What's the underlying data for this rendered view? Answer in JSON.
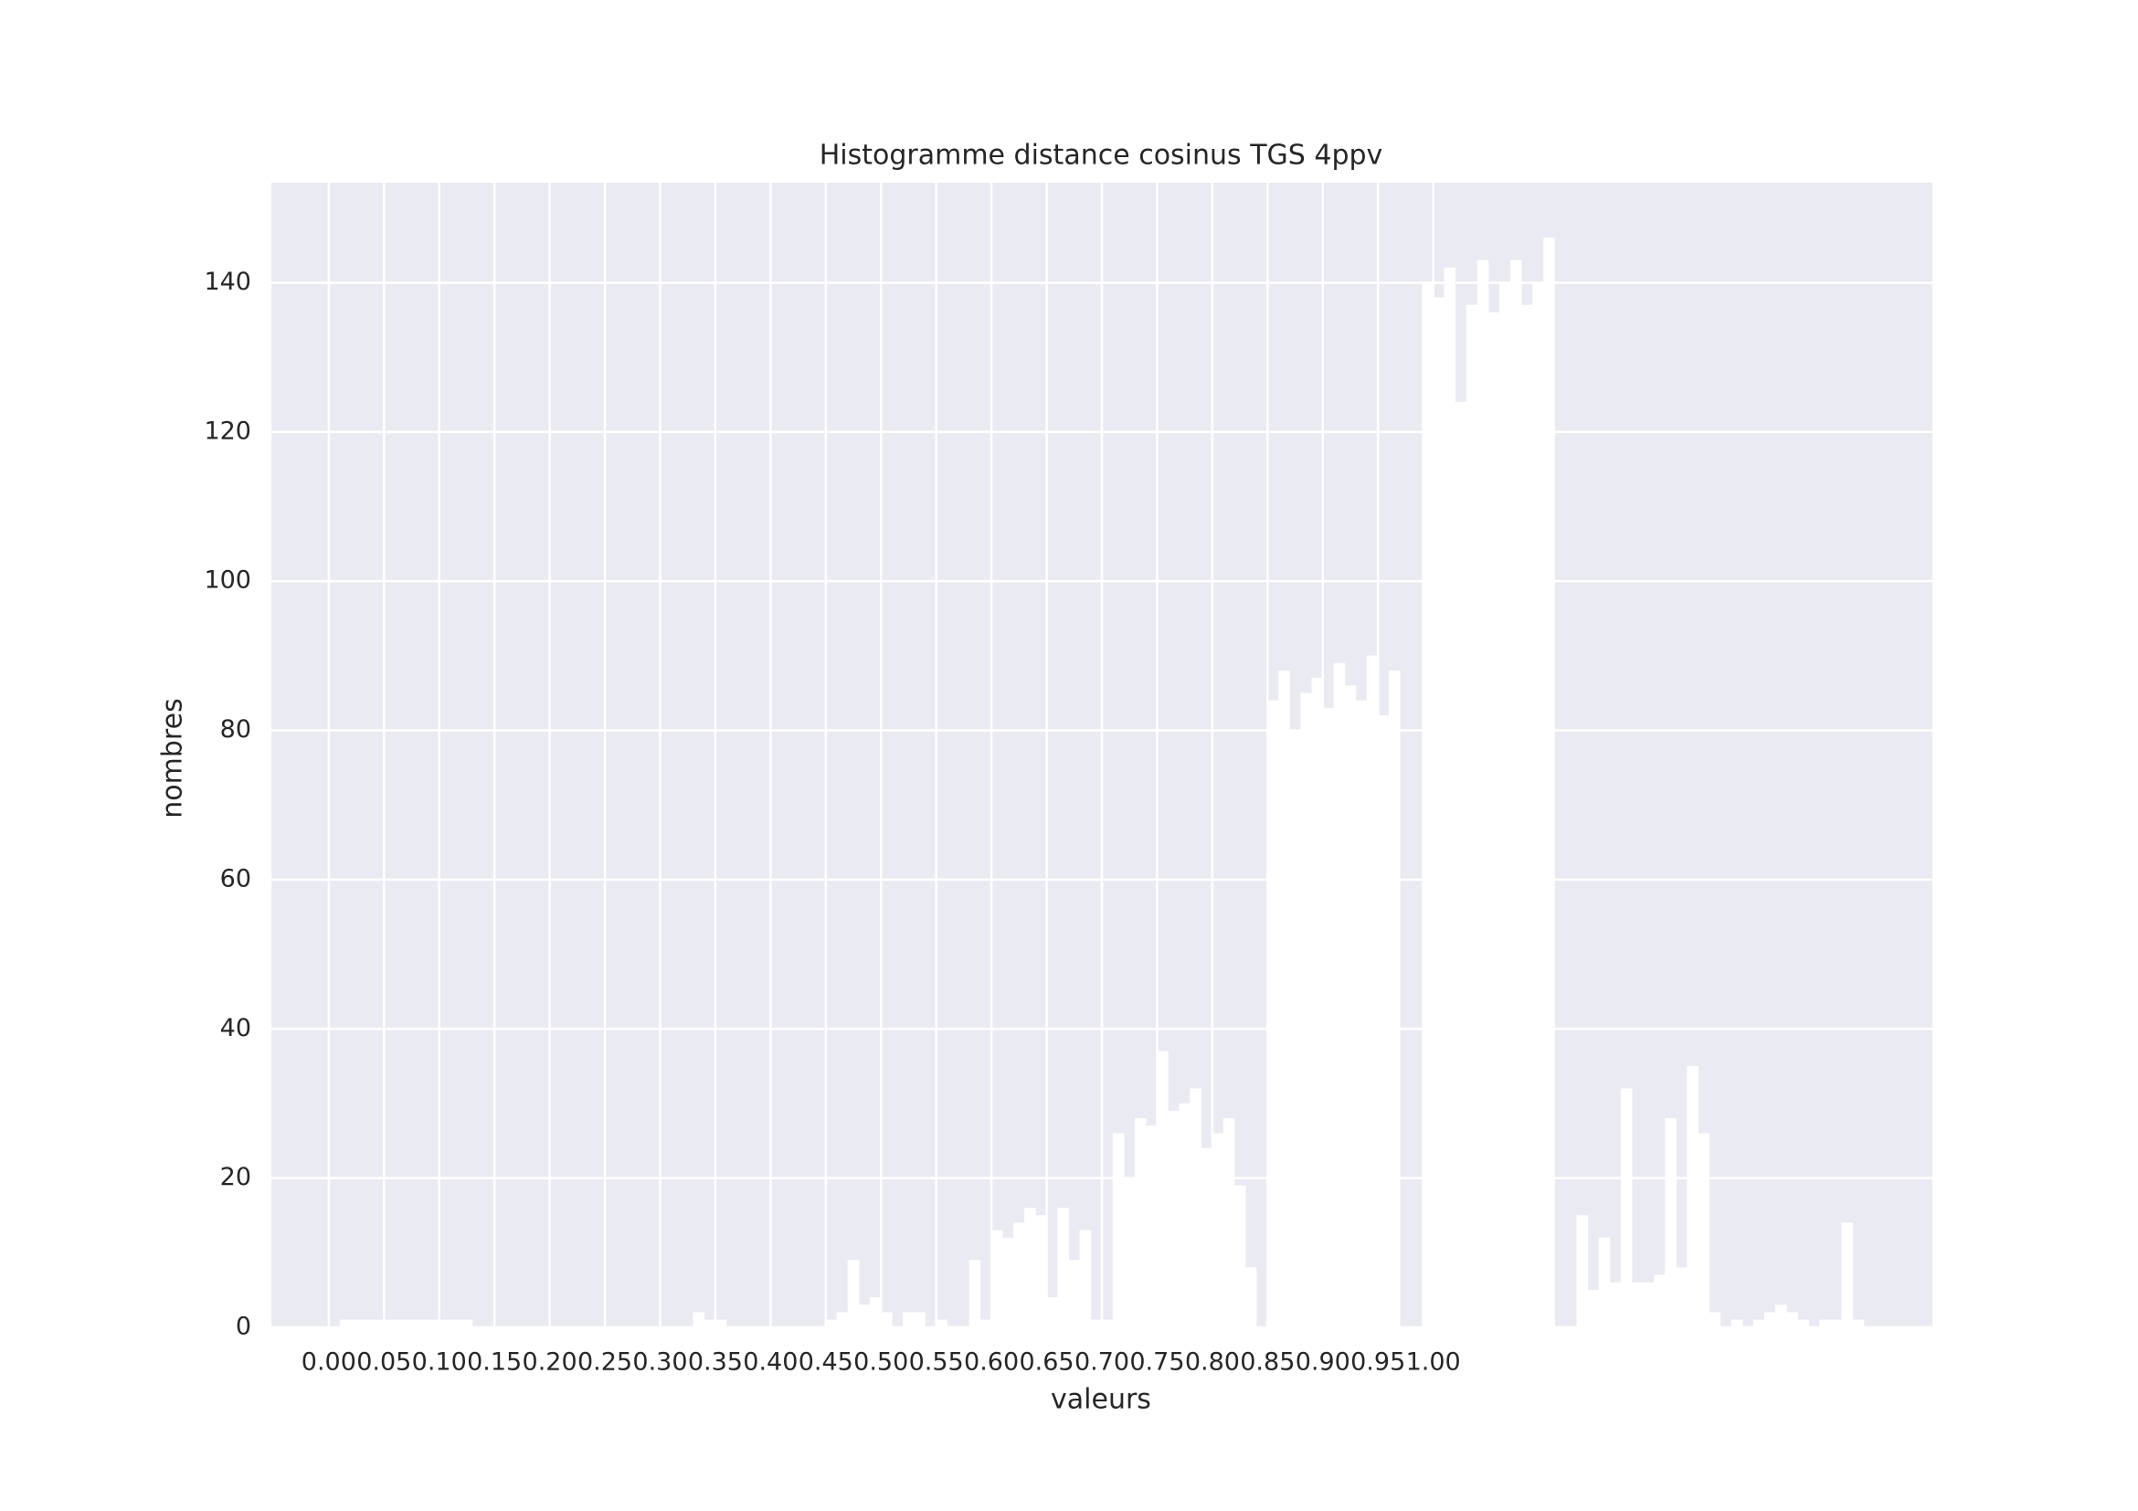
{
  "chart_data": {
    "type": "histogram",
    "title": "Histogramme distance cosinus TGS 4ppv",
    "x_label": "valeurs",
    "y_label": "nombres",
    "bins": [
      0,
      0.01,
      0.02,
      0.03,
      0.04,
      0.05,
      0.06,
      0.07,
      0.08,
      0.09,
      0.1,
      0.11,
      0.12,
      0.13,
      0.14,
      0.15,
      0.16,
      0.17,
      0.18,
      0.19,
      0.2,
      0.21,
      0.22,
      0.23,
      0.24,
      0.25,
      0.26,
      0.27,
      0.28,
      0.29,
      0.3,
      0.31,
      0.32,
      0.33,
      0.34,
      0.35,
      0.36,
      0.37,
      0.38,
      0.39,
      0.4,
      0.41,
      0.42,
      0.43,
      0.44,
      0.45,
      0.46,
      0.47,
      0.48,
      0.49,
      0.5,
      0.51,
      0.52,
      0.53,
      0.54,
      0.55,
      0.56,
      0.57,
      0.58,
      0.59,
      0.6,
      0.61,
      0.62,
      0.63,
      0.64,
      0.65,
      0.66,
      0.67,
      0.68,
      0.69,
      0.7,
      0.71,
      0.72,
      0.73,
      0.74,
      0.75,
      0.76,
      0.77,
      0.78,
      0.79,
      0.8,
      0.81,
      0.82,
      0.83,
      0.84,
      0.85,
      0.86,
      0.87,
      0.88,
      0.89,
      0.9,
      0.91,
      0.92,
      0.93,
      0.94,
      0.95,
      0.96,
      0.97,
      0.98,
      0.99,
      1,
      1.01,
      1.02,
      1.03,
      1.04,
      1.05,
      1.06,
      1.07,
      1.08,
      1.09,
      1.1,
      1.11,
      1.12,
      1.13,
      1.14,
      1.15,
      1.16,
      1.17,
      1.18,
      1.19,
      1.2,
      1.21,
      1.22,
      1.23,
      1.24,
      1.25,
      1.26,
      1.27,
      1.28,
      1.29,
      1.3,
      1.31,
      1.32,
      1.33,
      1.34,
      1.35,
      1.36,
      1.37,
      1.38,
      1.39,
      1.4
    ],
    "values": [
      0,
      1,
      1,
      1,
      1,
      1,
      1,
      1,
      1,
      1,
      1,
      1,
      1,
      0,
      0,
      0,
      0,
      0,
      0,
      0,
      0,
      0,
      0,
      0,
      0,
      0,
      0,
      0,
      0,
      0,
      0,
      0,
      0,
      2,
      1,
      1,
      0,
      0,
      0,
      0,
      0,
      0,
      0,
      0,
      0,
      1,
      2,
      9,
      3,
      4,
      2,
      0,
      2,
      2,
      0,
      1,
      0,
      0,
      9,
      1,
      13,
      12,
      14,
      16,
      15,
      4,
      16,
      9,
      13,
      1,
      1,
      26,
      20,
      28,
      27,
      37,
      29,
      30,
      32,
      24,
      26,
      28,
      19,
      8,
      0,
      84,
      88,
      80,
      85,
      87,
      83,
      89,
      86,
      84,
      90,
      82,
      88,
      0,
      0,
      140,
      138,
      142,
      124,
      137,
      143,
      136,
      140,
      143,
      137,
      140,
      146,
      0,
      0,
      15,
      5,
      12,
      6,
      32,
      6,
      6,
      7,
      28,
      8,
      35,
      26,
      2,
      0,
      1,
      0,
      1,
      2,
      3,
      2,
      1,
      0,
      1,
      1,
      14,
      1,
      0
    ],
    "color": "#ffffff",
    "background": "#eaeaf2",
    "grid": true,
    "xlim": [
      -0.052,
      1.452
    ],
    "xticks": [
      {
        "value": 0,
        "label": "0.00"
      },
      {
        "value": 0.05,
        "label": "0.05"
      },
      {
        "value": 0.1,
        "label": "0.10"
      },
      {
        "value": 0.15,
        "label": "0.15"
      },
      {
        "value": 0.2,
        "label": "0.20"
      },
      {
        "value": 0.25,
        "label": "0.25"
      },
      {
        "value": 0.3,
        "label": "0.30"
      },
      {
        "value": 0.35,
        "label": "0.35"
      },
      {
        "value": 0.4,
        "label": "0.40"
      },
      {
        "value": 0.45,
        "label": "0.45"
      },
      {
        "value": 0.5,
        "label": "0.50"
      },
      {
        "value": 0.55,
        "label": "0.55"
      },
      {
        "value": 0.6,
        "label": "0.60"
      },
      {
        "value": 0.65,
        "label": "0.65"
      },
      {
        "value": 0.7,
        "label": "0.70"
      },
      {
        "value": 0.75,
        "label": "0.75"
      },
      {
        "value": 0.8,
        "label": "0.80"
      },
      {
        "value": 0.85,
        "label": "0.85"
      },
      {
        "value": 0.9,
        "label": "0.90"
      },
      {
        "value": 0.95,
        "label": "0.95"
      },
      {
        "value": 1,
        "label": "1.00"
      }
    ],
    "ylim": [
      0,
      153.4
    ],
    "yticks": [
      0,
      20,
      40,
      60,
      80,
      100,
      120,
      140
    ]
  }
}
